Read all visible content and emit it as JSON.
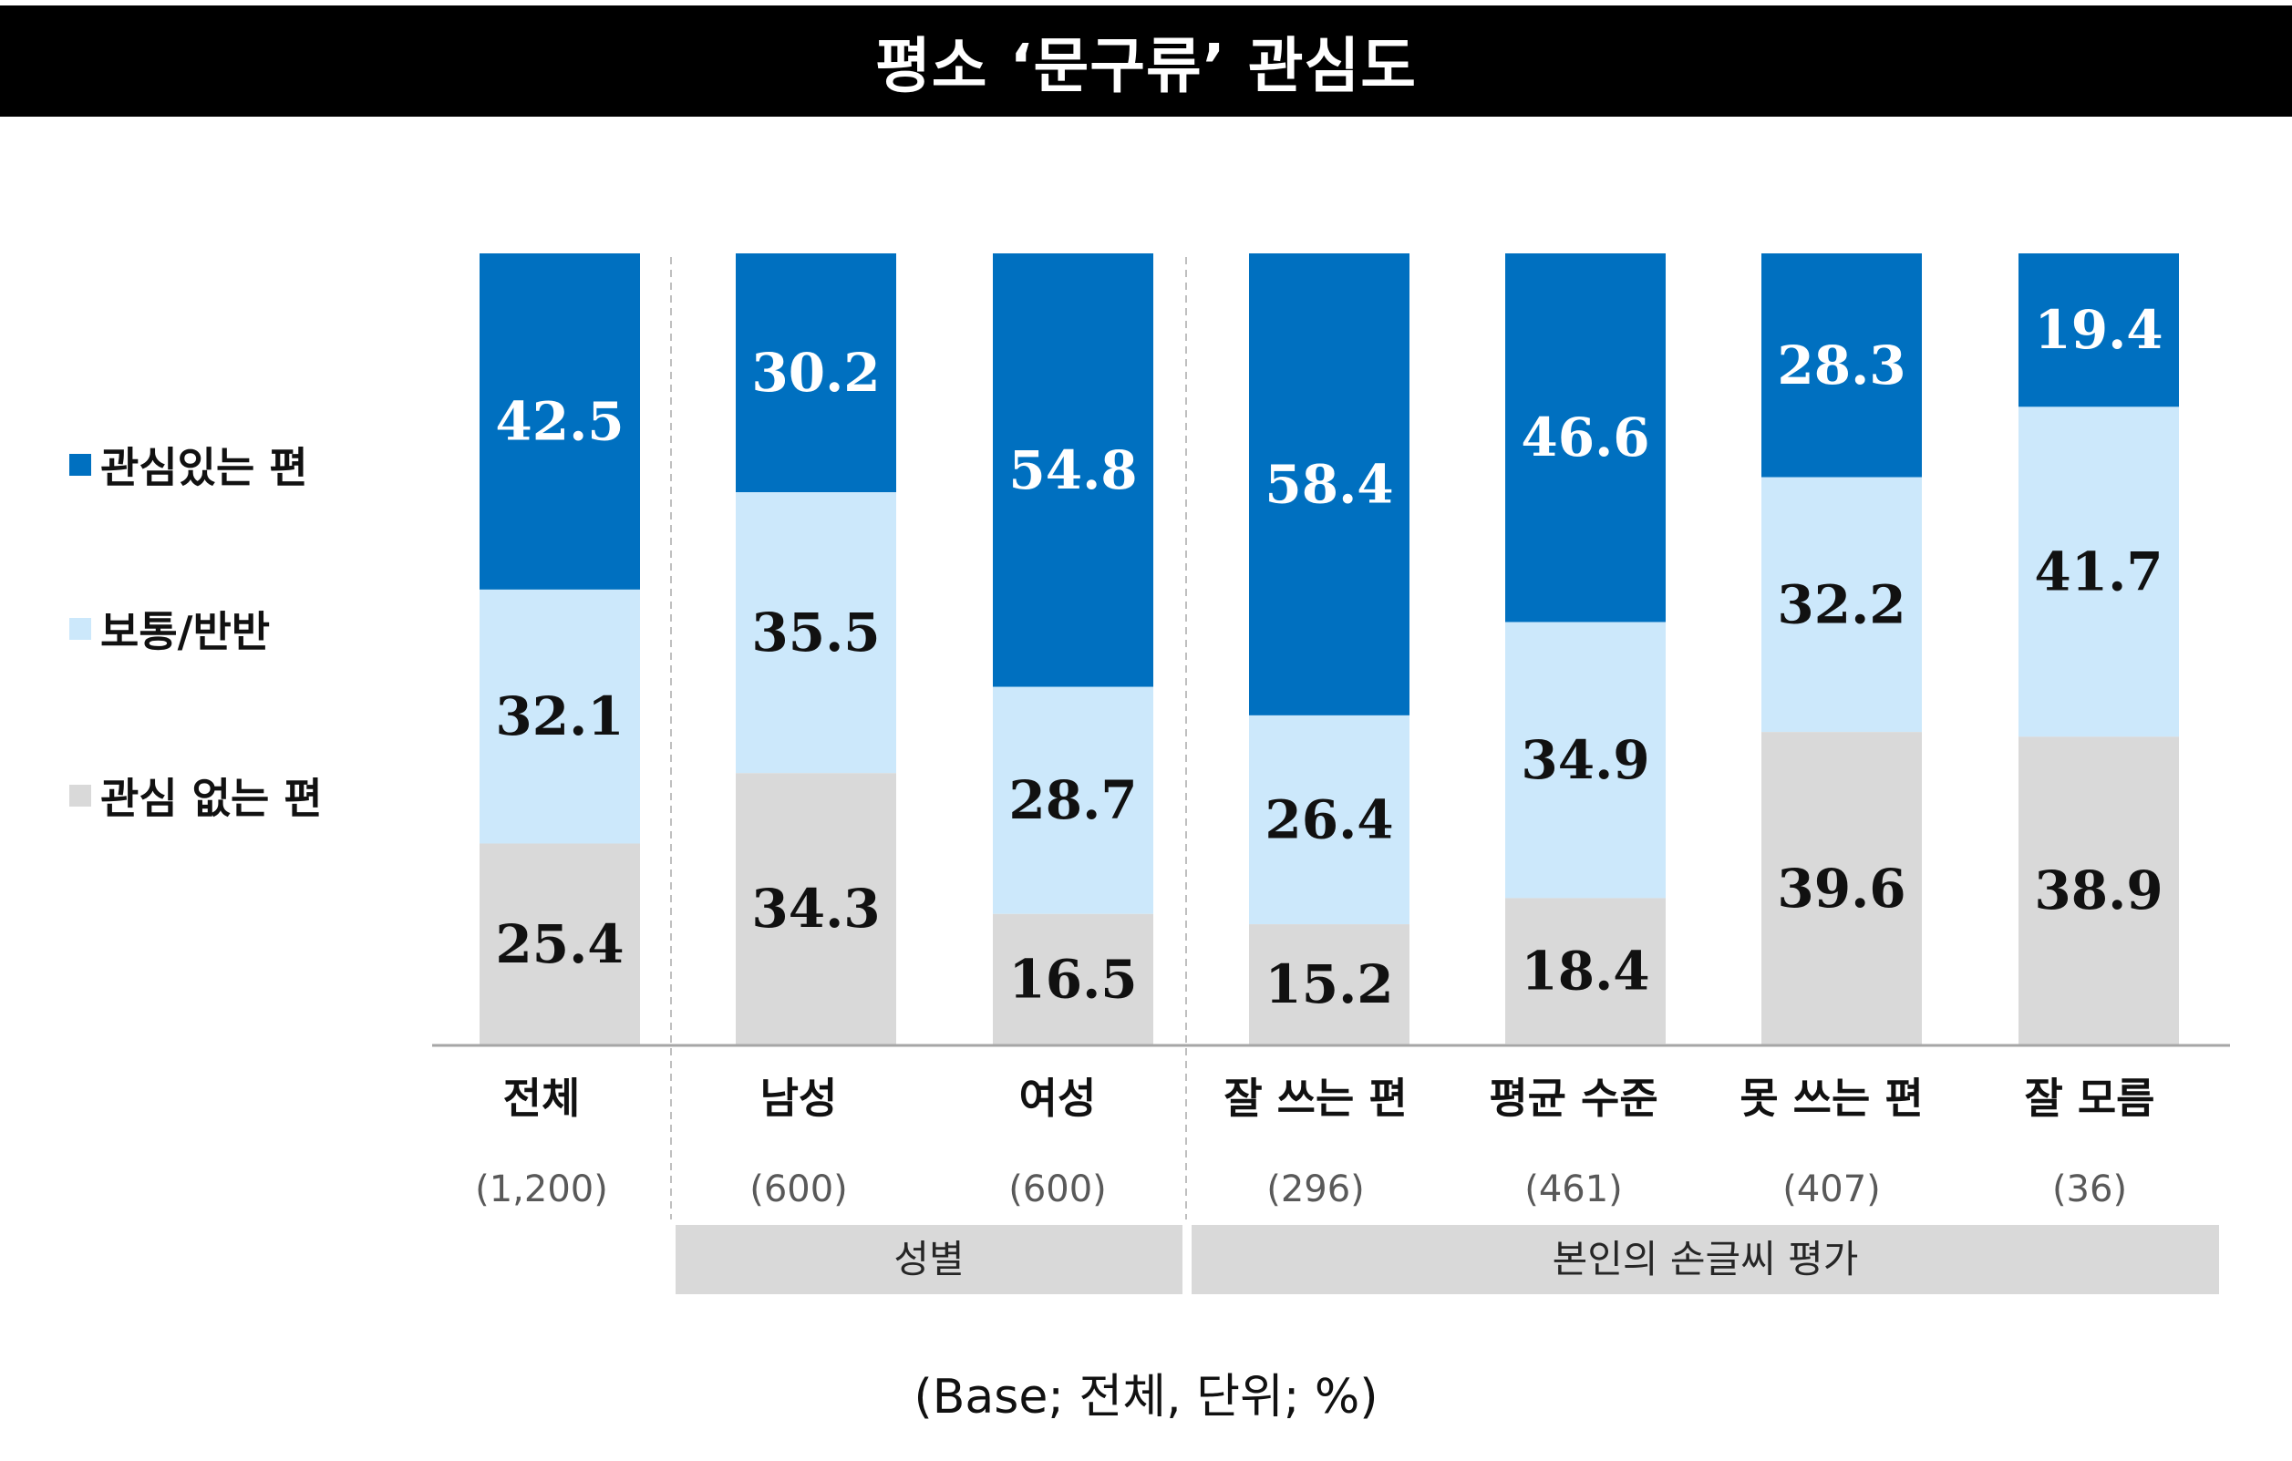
{
  "title": "평소 ‘문구류’ 관심도",
  "legend": [
    {
      "label": "관심있는 편",
      "color": "#0070C0"
    },
    {
      "label": "보통/반반",
      "color": "#CCE8FB"
    },
    {
      "label": "관심 없는 편",
      "color": "#D9D9D9"
    }
  ],
  "chart_data": {
    "type": "bar",
    "stacked": true,
    "categories": [
      "전체",
      "남성",
      "여성",
      "잘 쓰는 편",
      "평균 수준",
      "못 쓰는 편",
      "잘 모름"
    ],
    "bases": [
      "(1,200)",
      "(600)",
      "(600)",
      "(296)",
      "(461)",
      "(407)",
      "(36)"
    ],
    "series": [
      {
        "name": "관심있는 편",
        "color": "#0070C0",
        "values": [
          42.5,
          30.2,
          54.8,
          58.4,
          46.6,
          28.3,
          19.4
        ]
      },
      {
        "name": "보통/반반",
        "color": "#CCE8FB",
        "values": [
          32.1,
          35.5,
          28.7,
          26.4,
          34.9,
          32.2,
          41.7
        ]
      },
      {
        "name": "관심 없는 편",
        "color": "#D9D9D9",
        "values": [
          25.4,
          34.3,
          16.5,
          15.2,
          18.4,
          39.6,
          38.9
        ]
      }
    ],
    "groups": [
      {
        "label": "성별",
        "categories": [
          "남성",
          "여성"
        ]
      },
      {
        "label": "본인의 손글씨 평가",
        "categories": [
          "잘 쓰는 편",
          "평균 수준",
          "못 쓰는 편",
          "잘 모름"
        ]
      }
    ],
    "ylim": [
      0,
      100
    ]
  },
  "base_note": "(Base; 전체, 단위; %)"
}
